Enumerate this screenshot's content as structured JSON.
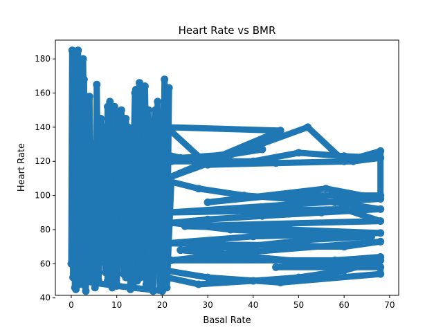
{
  "chart_data": {
    "type": "line",
    "title": "Heart Rate vs BMR",
    "xlabel": "Basal Rate",
    "ylabel": "Heart Rate",
    "xlim": [
      -3.5,
      72
    ],
    "ylim": [
      41.5,
      191
    ],
    "xticks": [
      0,
      10,
      20,
      30,
      40,
      50,
      60,
      70
    ],
    "yticks": [
      40,
      60,
      80,
      100,
      120,
      140,
      160,
      180
    ],
    "grid": false,
    "color": "#1f77b4",
    "markers": true,
    "series": [
      {
        "values": [
          [
            0.0,
            60
          ],
          [
            0.2,
            185
          ],
          [
            0.4,
            52
          ],
          [
            0.6,
            170
          ],
          [
            0.8,
            46
          ],
          [
            1.0,
            150
          ],
          [
            1.2,
            62
          ],
          [
            1.5,
            185
          ],
          [
            1.8,
            48
          ],
          [
            2.0,
            175
          ],
          [
            2.3,
            55
          ],
          [
            2.6,
            180
          ],
          [
            3.0,
            47
          ],
          [
            3.3,
            140
          ],
          [
            3.6,
            52
          ],
          [
            4.0,
            158
          ],
          [
            4.4,
            50
          ],
          [
            4.8,
            130
          ],
          [
            5.2,
            46
          ],
          [
            5.6,
            165
          ],
          [
            6.0,
            60
          ],
          [
            7.0,
            140
          ],
          [
            8.0,
            50
          ],
          [
            8.5,
            155
          ],
          [
            9.0,
            55
          ],
          [
            9.5,
            152
          ],
          [
            10.0,
            48
          ],
          [
            11.0,
            150
          ],
          [
            12.0,
            52
          ],
          [
            12.5,
            140
          ],
          [
            13.0,
            45
          ],
          [
            14.0,
            160
          ],
          [
            14.5,
            50
          ],
          [
            15.0,
            166
          ],
          [
            15.5,
            56
          ],
          [
            16.0,
            160
          ],
          [
            16.5,
            48
          ],
          [
            17.0,
            150
          ],
          [
            18.0,
            44
          ],
          [
            19.0,
            155
          ],
          [
            20.0,
            60
          ],
          [
            20.5,
            168
          ],
          [
            21.0,
            50
          ],
          [
            21.5,
            163
          ],
          [
            21.0,
            124
          ],
          [
            24.0,
            122
          ],
          [
            35.0,
            124
          ],
          [
            42.0,
            127
          ],
          [
            22.0,
            120
          ],
          [
            40.0,
            120
          ],
          [
            50.0,
            125
          ],
          [
            60.0,
            123
          ],
          [
            68.0,
            122
          ],
          [
            62.0,
            120
          ],
          [
            45.0,
            119
          ],
          [
            30.0,
            118
          ],
          [
            21.0,
            140
          ],
          [
            46.0,
            138
          ],
          [
            21.0,
            110
          ],
          [
            52.0,
            140
          ],
          [
            60.0,
            120
          ],
          [
            68.0,
            126
          ],
          [
            68.0,
            100
          ],
          [
            45.0,
            100
          ],
          [
            30.0,
            96
          ],
          [
            56.0,
            104
          ],
          [
            68.0,
            98
          ],
          [
            50.0,
            95
          ],
          [
            21.0,
            90
          ],
          [
            60.0,
            92
          ],
          [
            68.0,
            85
          ],
          [
            25.0,
            82
          ],
          [
            48.0,
            80
          ],
          [
            68.0,
            78
          ],
          [
            40.0,
            76
          ],
          [
            21.0,
            72
          ],
          [
            60.0,
            70
          ],
          [
            68.0,
            73
          ],
          [
            35.0,
            66
          ],
          [
            22.0,
            62
          ],
          [
            58.0,
            62
          ],
          [
            68.0,
            64
          ],
          [
            45.0,
            58
          ],
          [
            68.0,
            58
          ],
          [
            68.0,
            54
          ],
          [
            46.0,
            49
          ],
          [
            30.0,
            52
          ],
          [
            21.0,
            56
          ],
          [
            20.0,
            44
          ],
          [
            10.0,
            47
          ],
          [
            2.0,
            50
          ],
          [
            1.0,
            60
          ]
        ]
      },
      {
        "values": [
          [
            0.5,
            182
          ],
          [
            1.0,
            45
          ],
          [
            1.4,
            178
          ],
          [
            2.0,
            58
          ],
          [
            2.8,
            168
          ],
          [
            3.2,
            44
          ],
          [
            3.8,
            152
          ],
          [
            4.2,
            60
          ],
          [
            5.0,
            120
          ],
          [
            6.0,
            50
          ],
          [
            6.5,
            145
          ],
          [
            7.5,
            55
          ],
          [
            8.0,
            152
          ],
          [
            9.0,
            46
          ],
          [
            10.5,
            148
          ],
          [
            11.5,
            54
          ],
          [
            12.0,
            145
          ],
          [
            13.5,
            48
          ],
          [
            14.2,
            162
          ],
          [
            15.2,
            52
          ],
          [
            16.2,
            164
          ],
          [
            17.0,
            47
          ],
          [
            18.5,
            150
          ],
          [
            19.5,
            45
          ],
          [
            20.5,
            140
          ],
          [
            21.0,
            46
          ],
          [
            22.0,
            108
          ],
          [
            28.0,
            104
          ],
          [
            38.0,
            100
          ],
          [
            48.0,
            98
          ],
          [
            58.0,
            96
          ],
          [
            68.0,
            92
          ],
          [
            55.0,
            90
          ],
          [
            42.0,
            88
          ],
          [
            30.0,
            86
          ],
          [
            22.0,
            84
          ],
          [
            35.0,
            80
          ],
          [
            50.0,
            78
          ],
          [
            66.0,
            76
          ],
          [
            52.0,
            74
          ],
          [
            38.0,
            70
          ],
          [
            24.0,
            68
          ],
          [
            40.0,
            64
          ],
          [
            56.0,
            60
          ],
          [
            68.0,
            62
          ],
          [
            60.0,
            56
          ],
          [
            50.0,
            52
          ],
          [
            40.0,
            50
          ],
          [
            28.0,
            48
          ],
          [
            21.0,
            52
          ]
        ]
      }
    ]
  }
}
